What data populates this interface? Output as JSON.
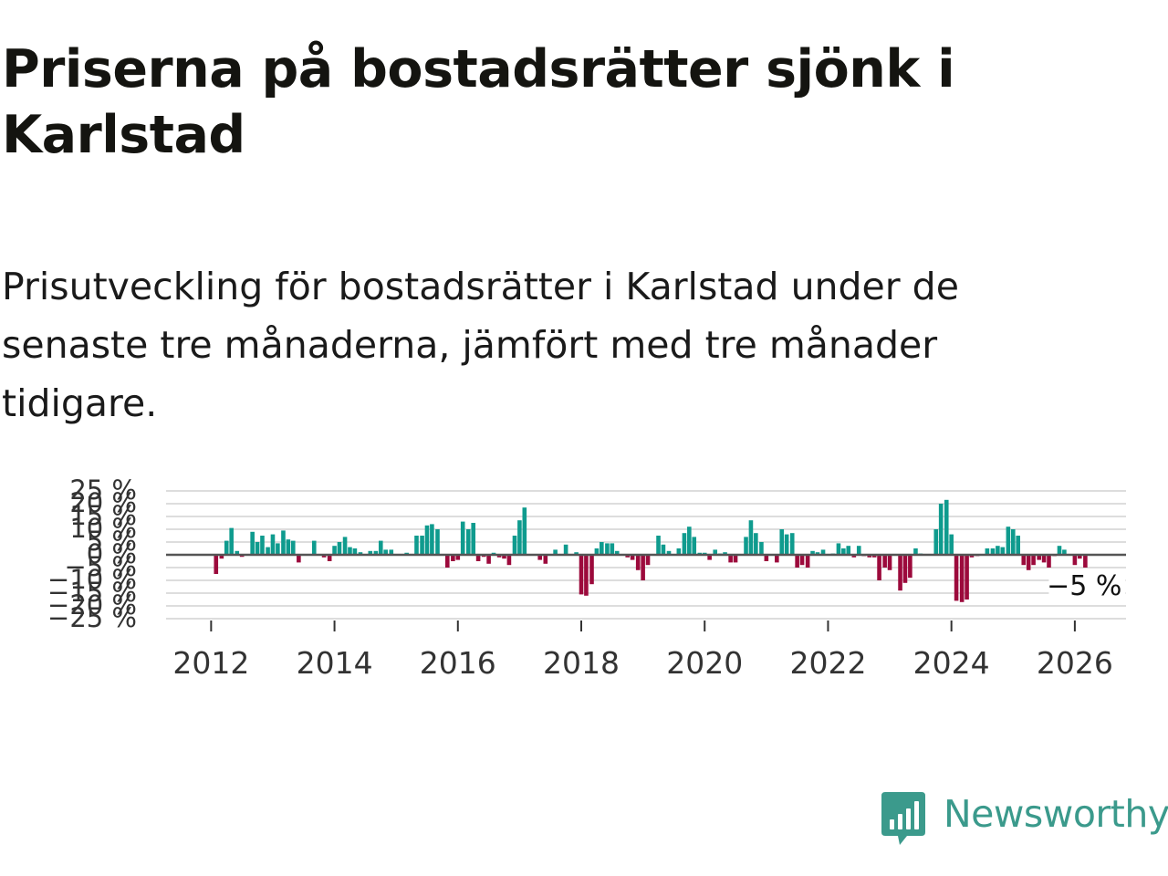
{
  "title": "Priserna på bostadsrätter sjönk i Karlstad",
  "subtitle": "Prisutveckling för bostadsrätter i Karlstad under de senaste tre månaderna, jämfört med tre månader tidigare.",
  "brand": {
    "name": "Newsworthy",
    "color": "#3b9a8c"
  },
  "colors": {
    "positive": "#0f9b8e",
    "negative": "#9c0a3c",
    "zero_line": "#555555",
    "grid": "#dddddd"
  },
  "chart_data": {
    "type": "bar",
    "x_unit": "year",
    "x_ticks": [
      2012,
      2014,
      2016,
      2018,
      2020,
      2022,
      2024,
      2026
    ],
    "x_tick_labels": [
      "2012",
      "2014",
      "2016",
      "2018",
      "2020",
      "2022",
      "2024",
      "2026"
    ],
    "y_ticks": [
      25,
      20,
      15,
      10,
      5,
      0,
      -5,
      -10,
      -15,
      -20,
      -25
    ],
    "y_tick_labels": [
      "25 %",
      "20 %",
      "15 %",
      "10 %",
      "5 %",
      "0 %",
      "−5 %",
      "−10 %",
      "−15 %",
      "−20 %",
      "−25 %"
    ],
    "ylim": [
      -25,
      25
    ],
    "xlim": [
      2011.27,
      2026.83
    ],
    "annotation": "−5 %",
    "grid": true,
    "legend": "none",
    "values": [
      {
        "x": 2012.08,
        "y": -7.5
      },
      {
        "x": 2012.17,
        "y": -1.5
      },
      {
        "x": 2012.25,
        "y": 5.5
      },
      {
        "x": 2012.33,
        "y": 10.5
      },
      {
        "x": 2012.42,
        "y": 1.5
      },
      {
        "x": 2012.5,
        "y": -0.8
      },
      {
        "x": 2012.58,
        "y": 0.3
      },
      {
        "x": 2012.67,
        "y": 9.0
      },
      {
        "x": 2012.75,
        "y": 5.0
      },
      {
        "x": 2012.83,
        "y": 7.5
      },
      {
        "x": 2012.92,
        "y": 3.0
      },
      {
        "x": 2013.0,
        "y": 8.0
      },
      {
        "x": 2013.08,
        "y": 4.5
      },
      {
        "x": 2013.17,
        "y": 9.5
      },
      {
        "x": 2013.25,
        "y": 6.0
      },
      {
        "x": 2013.33,
        "y": 5.5
      },
      {
        "x": 2013.42,
        "y": -3.0
      },
      {
        "x": 2013.5,
        "y": 0.2
      },
      {
        "x": 2013.58,
        "y": 0.3
      },
      {
        "x": 2013.67,
        "y": 5.5
      },
      {
        "x": 2013.75,
        "y": 0.2
      },
      {
        "x": 2013.83,
        "y": -1.0
      },
      {
        "x": 2013.92,
        "y": -2.5
      },
      {
        "x": 2014.0,
        "y": 3.5
      },
      {
        "x": 2014.08,
        "y": 5.0
      },
      {
        "x": 2014.17,
        "y": 7.0
      },
      {
        "x": 2014.25,
        "y": 3.0
      },
      {
        "x": 2014.33,
        "y": 2.5
      },
      {
        "x": 2014.42,
        "y": 1.0
      },
      {
        "x": 2014.5,
        "y": 0.3
      },
      {
        "x": 2014.58,
        "y": 1.5
      },
      {
        "x": 2014.67,
        "y": 1.5
      },
      {
        "x": 2014.75,
        "y": 5.5
      },
      {
        "x": 2014.83,
        "y": 2.0
      },
      {
        "x": 2014.92,
        "y": 2.0
      },
      {
        "x": 2015.0,
        "y": 0.2
      },
      {
        "x": 2015.08,
        "y": 0.3
      },
      {
        "x": 2015.17,
        "y": 0.8
      },
      {
        "x": 2015.25,
        "y": 0.2
      },
      {
        "x": 2015.33,
        "y": 7.5
      },
      {
        "x": 2015.42,
        "y": 7.5
      },
      {
        "x": 2015.5,
        "y": 11.5
      },
      {
        "x": 2015.58,
        "y": 12.0
      },
      {
        "x": 2015.67,
        "y": 10.0
      },
      {
        "x": 2015.75,
        "y": 0.3
      },
      {
        "x": 2015.83,
        "y": -5.0
      },
      {
        "x": 2015.92,
        "y": -2.5
      },
      {
        "x": 2016.0,
        "y": -2.0
      },
      {
        "x": 2016.08,
        "y": 13.0
      },
      {
        "x": 2016.17,
        "y": 10.0
      },
      {
        "x": 2016.25,
        "y": 12.5
      },
      {
        "x": 2016.33,
        "y": -2.5
      },
      {
        "x": 2016.42,
        "y": -0.8
      },
      {
        "x": 2016.5,
        "y": -3.5
      },
      {
        "x": 2016.58,
        "y": 0.8
      },
      {
        "x": 2016.67,
        "y": -1.0
      },
      {
        "x": 2016.75,
        "y": -1.5
      },
      {
        "x": 2016.83,
        "y": -4.0
      },
      {
        "x": 2016.92,
        "y": 7.5
      },
      {
        "x": 2017.0,
        "y": 13.5
      },
      {
        "x": 2017.08,
        "y": 18.5
      },
      {
        "x": 2017.17,
        "y": 0.3
      },
      {
        "x": 2017.25,
        "y": 0.2
      },
      {
        "x": 2017.33,
        "y": -2.0
      },
      {
        "x": 2017.42,
        "y": -3.5
      },
      {
        "x": 2017.5,
        "y": 0.2
      },
      {
        "x": 2017.58,
        "y": 2.0
      },
      {
        "x": 2017.67,
        "y": 0.3
      },
      {
        "x": 2017.75,
        "y": 4.0
      },
      {
        "x": 2017.83,
        "y": 0.2
      },
      {
        "x": 2017.92,
        "y": 1.0
      },
      {
        "x": 2018.0,
        "y": -15.5
      },
      {
        "x": 2018.08,
        "y": -16.0
      },
      {
        "x": 2018.17,
        "y": -11.5
      },
      {
        "x": 2018.25,
        "y": 2.5
      },
      {
        "x": 2018.33,
        "y": 5.0
      },
      {
        "x": 2018.42,
        "y": 4.5
      },
      {
        "x": 2018.5,
        "y": 4.5
      },
      {
        "x": 2018.58,
        "y": 1.5
      },
      {
        "x": 2018.67,
        "y": 0.3
      },
      {
        "x": 2018.75,
        "y": -1.0
      },
      {
        "x": 2018.83,
        "y": -2.0
      },
      {
        "x": 2018.92,
        "y": -6.0
      },
      {
        "x": 2019.0,
        "y": -10.0
      },
      {
        "x": 2019.08,
        "y": -4.0
      },
      {
        "x": 2019.17,
        "y": 0.3
      },
      {
        "x": 2019.25,
        "y": 7.5
      },
      {
        "x": 2019.33,
        "y": 4.0
      },
      {
        "x": 2019.42,
        "y": 1.5
      },
      {
        "x": 2019.5,
        "y": 0.2
      },
      {
        "x": 2019.58,
        "y": 2.5
      },
      {
        "x": 2019.67,
        "y": 8.5
      },
      {
        "x": 2019.75,
        "y": 11.0
      },
      {
        "x": 2019.83,
        "y": 7.0
      },
      {
        "x": 2019.92,
        "y": 0.8
      },
      {
        "x": 2020.0,
        "y": 0.8
      },
      {
        "x": 2020.08,
        "y": -2.0
      },
      {
        "x": 2020.17,
        "y": 2.0
      },
      {
        "x": 2020.25,
        "y": 0.5
      },
      {
        "x": 2020.33,
        "y": 1.0
      },
      {
        "x": 2020.42,
        "y": -3.0
      },
      {
        "x": 2020.5,
        "y": -3.0
      },
      {
        "x": 2020.58,
        "y": 0.3
      },
      {
        "x": 2020.67,
        "y": 7.0
      },
      {
        "x": 2020.75,
        "y": 13.5
      },
      {
        "x": 2020.83,
        "y": 8.5
      },
      {
        "x": 2020.92,
        "y": 5.0
      },
      {
        "x": 2021.0,
        "y": -2.5
      },
      {
        "x": 2021.08,
        "y": 0.3
      },
      {
        "x": 2021.17,
        "y": -3.0
      },
      {
        "x": 2021.25,
        "y": 10.0
      },
      {
        "x": 2021.33,
        "y": 8.0
      },
      {
        "x": 2021.42,
        "y": 8.5
      },
      {
        "x": 2021.5,
        "y": -5.0
      },
      {
        "x": 2021.58,
        "y": -4.0
      },
      {
        "x": 2021.67,
        "y": -5.0
      },
      {
        "x": 2021.75,
        "y": 1.5
      },
      {
        "x": 2021.83,
        "y": 1.0
      },
      {
        "x": 2021.92,
        "y": 2.0
      },
      {
        "x": 2022.0,
        "y": 0.3
      },
      {
        "x": 2022.08,
        "y": 0.5
      },
      {
        "x": 2022.17,
        "y": 4.5
      },
      {
        "x": 2022.25,
        "y": 2.5
      },
      {
        "x": 2022.33,
        "y": 3.5
      },
      {
        "x": 2022.42,
        "y": -1.0
      },
      {
        "x": 2022.5,
        "y": 3.5
      },
      {
        "x": 2022.58,
        "y": -0.5
      },
      {
        "x": 2022.67,
        "y": -1.0
      },
      {
        "x": 2022.75,
        "y": -1.0
      },
      {
        "x": 2022.83,
        "y": -10.0
      },
      {
        "x": 2022.92,
        "y": -5.0
      },
      {
        "x": 2023.0,
        "y": -6.0
      },
      {
        "x": 2023.08,
        "y": 0.2
      },
      {
        "x": 2023.17,
        "y": -14.0
      },
      {
        "x": 2023.25,
        "y": -11.0
      },
      {
        "x": 2023.33,
        "y": -9.0
      },
      {
        "x": 2023.42,
        "y": 2.5
      },
      {
        "x": 2023.5,
        "y": 0.5
      },
      {
        "x": 2023.58,
        "y": 0.2
      },
      {
        "x": 2023.67,
        "y": 0.3
      },
      {
        "x": 2023.75,
        "y": 10.0
      },
      {
        "x": 2023.83,
        "y": 20.0
      },
      {
        "x": 2023.92,
        "y": 21.5
      },
      {
        "x": 2024.0,
        "y": 8.0
      },
      {
        "x": 2024.08,
        "y": -18.0
      },
      {
        "x": 2024.17,
        "y": -18.5
      },
      {
        "x": 2024.25,
        "y": -17.5
      },
      {
        "x": 2024.33,
        "y": -1.0
      },
      {
        "x": 2024.42,
        "y": -0.5
      },
      {
        "x": 2024.5,
        "y": 0.2
      },
      {
        "x": 2024.58,
        "y": 2.5
      },
      {
        "x": 2024.67,
        "y": 2.5
      },
      {
        "x": 2024.75,
        "y": 3.5
      },
      {
        "x": 2024.83,
        "y": 3.0
      },
      {
        "x": 2024.92,
        "y": 11.0
      },
      {
        "x": 2025.0,
        "y": 10.0
      },
      {
        "x": 2025.08,
        "y": 7.5
      },
      {
        "x": 2025.17,
        "y": -4.0
      },
      {
        "x": 2025.25,
        "y": -6.0
      },
      {
        "x": 2025.33,
        "y": -4.0
      },
      {
        "x": 2025.42,
        "y": -2.0
      },
      {
        "x": 2025.5,
        "y": -3.0
      },
      {
        "x": 2025.58,
        "y": -5.0
      },
      {
        "x": 2025.67,
        "y": -0.5
      },
      {
        "x": 2025.75,
        "y": 3.5
      },
      {
        "x": 2025.83,
        "y": 2.0
      },
      {
        "x": 2025.92,
        "y": 0.2
      },
      {
        "x": 2026.0,
        "y": -4.0
      },
      {
        "x": 2026.08,
        "y": -1.5
      },
      {
        "x": 2026.17,
        "y": -5.0
      }
    ]
  }
}
